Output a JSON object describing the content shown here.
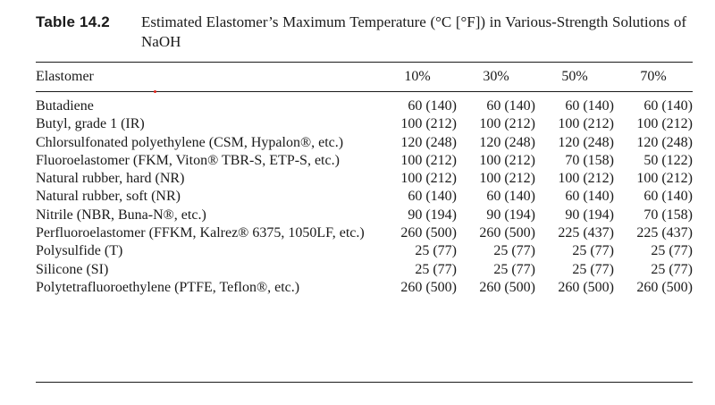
{
  "caption": {
    "label": "Table 14.2",
    "text": "Estimated Elastomer’s Maximum Temperature (°C [°F]) in Various-Strength Solutions of NaOH"
  },
  "table": {
    "headers": [
      "Elastomer",
      "10%",
      "30%",
      "50%",
      "70%"
    ],
    "rows": [
      {
        "name": "Butadiene",
        "values": [
          "60 (140)",
          "60 (140)",
          "60 (140)",
          "60 (140)"
        ]
      },
      {
        "name": "Butyl, grade 1 (IR)",
        "values": [
          "100 (212)",
          "100 (212)",
          "100 (212)",
          "100 (212)"
        ]
      },
      {
        "name": "Chlorsulfonated polyethylene (CSM, Hypalon®, etc.)",
        "values": [
          "120 (248)",
          "120 (248)",
          "120 (248)",
          "120 (248)"
        ]
      },
      {
        "name": "Fluoroelastomer (FKM, Viton® TBR-S, ETP-S, etc.)",
        "values": [
          "100 (212)",
          "100 (212)",
          "70 (158)",
          "50 (122)"
        ]
      },
      {
        "name": "Natural rubber, hard (NR)",
        "values": [
          "100 (212)",
          "100 (212)",
          "100 (212)",
          "100 (212)"
        ]
      },
      {
        "name": "Natural rubber, soft (NR)",
        "values": [
          "60 (140)",
          "60 (140)",
          "60 (140)",
          "60 (140)"
        ]
      },
      {
        "name": "Nitrile (NBR, Buna-N®, etc.)",
        "values": [
          "90 (194)",
          "90 (194)",
          "90 (194)",
          "70 (158)"
        ]
      },
      {
        "name": "Perfluoroelastomer (FFKM, Kalrez® 6375, 1050LF, etc.)",
        "values": [
          "260 (500)",
          "260 (500)",
          "225 (437)",
          "225 (437)"
        ]
      },
      {
        "name": "Polysulfide (T)",
        "values": [
          "25 (77)",
          "25 (77)",
          "25 (77)",
          "25 (77)"
        ]
      },
      {
        "name": "Silicone (SI)",
        "values": [
          "25 (77)",
          "25 (77)",
          "25 (77)",
          "25 (77)"
        ]
      },
      {
        "name": "Polytetrafluoroethylene (PTFE, Teflon®, etc.)",
        "values": [
          "260 (500)",
          "260 (500)",
          "260 (500)",
          "260 (500)"
        ]
      }
    ]
  },
  "colors": {
    "text": "#1a1a1a",
    "background": "#ffffff",
    "marker": "#e0241b"
  }
}
